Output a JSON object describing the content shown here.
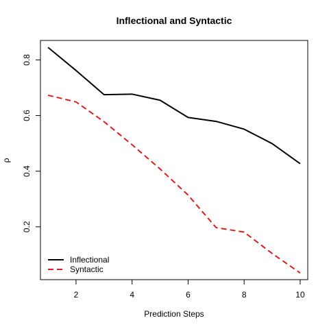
{
  "chart_data": {
    "type": "line",
    "title": "Inflectional and Syntactic",
    "xlabel": "Prediction Steps",
    "ylabel": "ρ",
    "x": [
      1,
      2,
      3,
      4,
      5,
      6,
      7,
      8,
      9,
      10
    ],
    "xlim": [
      0.73,
      10.27
    ],
    "ylim": [
      0.01,
      0.87
    ],
    "x_ticks": [
      2,
      4,
      6,
      8,
      10
    ],
    "y_ticks": [
      0.2,
      0.4,
      0.6,
      0.8
    ],
    "grid": false,
    "legend_position": "bottom-left",
    "series": [
      {
        "name": "Inflectional",
        "values": [
          0.845,
          0.762,
          0.675,
          0.677,
          0.655,
          0.593,
          0.579,
          0.551,
          0.499,
          0.427
        ],
        "color": "#000000",
        "dash": "solid"
      },
      {
        "name": "Syntactic",
        "values": [
          0.673,
          0.649,
          0.578,
          0.495,
          0.408,
          0.314,
          0.197,
          0.181,
          0.104,
          0.034
        ],
        "color": "#dd1c1c",
        "dash": "dashed"
      }
    ]
  }
}
